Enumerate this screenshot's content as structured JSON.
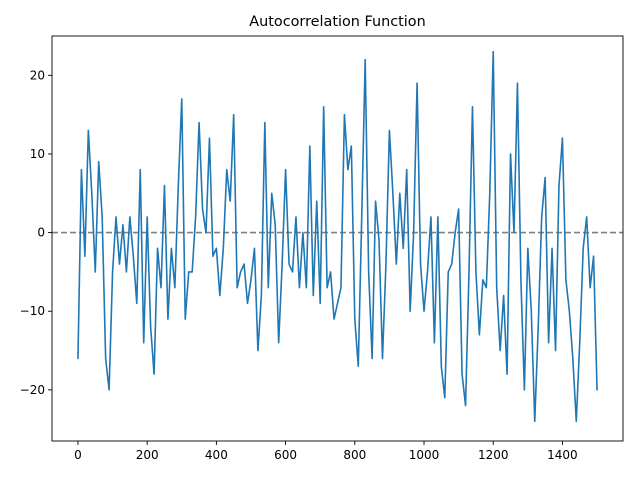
{
  "chart_data": {
    "type": "line",
    "title": "Autocorrelation Function",
    "xlabel": "",
    "ylabel": "",
    "xlim": [
      -75,
      1575
    ],
    "ylim": [
      -26.5,
      25
    ],
    "xticks": [
      0,
      200,
      400,
      600,
      800,
      1000,
      1200,
      1400
    ],
    "yticks": [
      -20,
      -10,
      0,
      10,
      20
    ],
    "grid": false,
    "legend": false,
    "reference_line": {
      "y": 0,
      "style": "dashed",
      "color": "#808080"
    },
    "series": [
      {
        "color": "#1f77b4",
        "x": [
          0,
          10,
          20,
          30,
          40,
          50,
          60,
          70,
          80,
          90,
          100,
          110,
          120,
          130,
          140,
          150,
          160,
          170,
          180,
          190,
          200,
          210,
          220,
          230,
          240,
          250,
          260,
          270,
          280,
          290,
          300,
          310,
          320,
          330,
          340,
          350,
          360,
          370,
          380,
          390,
          400,
          410,
          420,
          430,
          440,
          450,
          460,
          470,
          480,
          490,
          500,
          510,
          520,
          530,
          540,
          550,
          560,
          570,
          580,
          590,
          600,
          610,
          620,
          630,
          640,
          650,
          660,
          670,
          680,
          690,
          700,
          710,
          720,
          730,
          740,
          750,
          760,
          770,
          780,
          790,
          800,
          810,
          820,
          830,
          840,
          850,
          860,
          870,
          880,
          890,
          900,
          910,
          920,
          930,
          940,
          950,
          960,
          970,
          980,
          990,
          1000,
          1010,
          1020,
          1030,
          1040,
          1050,
          1060,
          1070,
          1080,
          1090,
          1100,
          1110,
          1120,
          1130,
          1140,
          1150,
          1160,
          1170,
          1180,
          1190,
          1200,
          1210,
          1220,
          1230,
          1240,
          1250,
          1260,
          1270,
          1280,
          1290,
          1300,
          1310,
          1320,
          1330,
          1340,
          1350,
          1360,
          1370,
          1380,
          1390,
          1400,
          1410,
          1420,
          1430,
          1440,
          1450,
          1460,
          1470,
          1480,
          1490,
          1500
        ],
        "y": [
          -16,
          8,
          -3,
          13,
          5,
          -5,
          9,
          2,
          -16,
          -20,
          -5,
          2,
          -4,
          1,
          -5,
          2,
          -3,
          -9,
          8,
          -14,
          2,
          -12,
          -18,
          -2,
          -7,
          6,
          -11,
          -2,
          -7,
          6,
          17,
          -11,
          -5,
          -5,
          2,
          14,
          3,
          0,
          12,
          -3,
          -2,
          -8,
          -2,
          8,
          4,
          15,
          -7,
          -5,
          -4,
          -9,
          -6,
          -2,
          -15,
          -8,
          14,
          -7,
          5,
          1,
          -14,
          -4,
          8,
          -4,
          -5,
          2,
          -7,
          0,
          -7,
          11,
          -8,
          4,
          -9,
          16,
          -7,
          -5,
          -11,
          -9,
          -7,
          15,
          8,
          11,
          -11,
          -17,
          2,
          22,
          -5,
          -16,
          4,
          -1,
          -16,
          -4,
          13,
          5,
          -4,
          5,
          -2,
          8,
          -10,
          0,
          19,
          -4,
          -10,
          -5,
          2,
          -14,
          2,
          -17,
          -21,
          -5,
          -4,
          0,
          3,
          -18,
          -22,
          -5,
          16,
          -5,
          -13,
          -6,
          -7,
          5,
          23,
          -7,
          -15,
          -8,
          -18,
          10,
          0,
          19,
          -6,
          -20,
          -2,
          -10,
          -24,
          -12,
          2,
          7,
          -14,
          -2,
          -15,
          6,
          12,
          -6,
          -10,
          -16,
          -24,
          -14,
          -2,
          2,
          -7,
          -3,
          -20
        ]
      }
    ]
  }
}
